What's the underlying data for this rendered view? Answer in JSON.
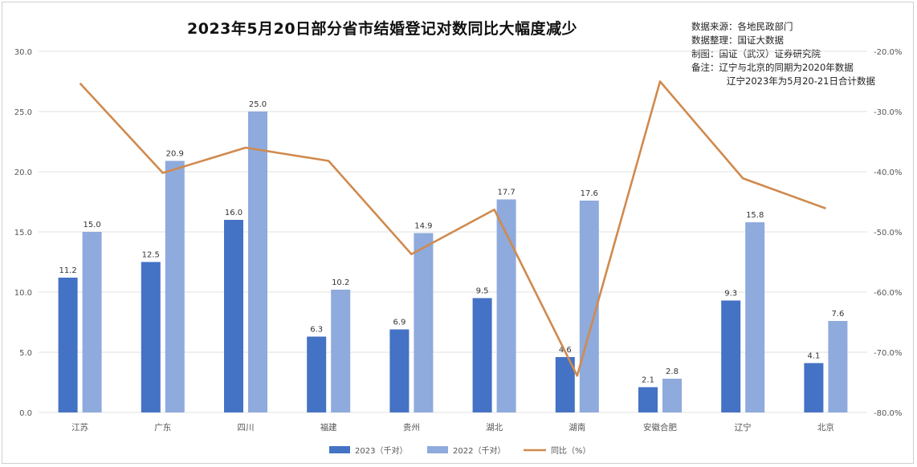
{
  "notes": {
    "source": "数据来源：各地民政部门",
    "compiled": "数据整理：国证大数据",
    "made_by": "制图：国证（武汉）证券研究院",
    "remark1": "备注：辽宁与北京的同期为2020年数据",
    "remark2": "辽宁2023年为5月20-21日合计数据"
  },
  "colors": {
    "series_2023": "#4472c4",
    "series_2022": "#8faadc",
    "yoy": "#d08a4e",
    "grid": "#e2e2e2"
  },
  "chart_data": {
    "type": "bar",
    "title": "2023年5月20日部分省市结婚登记对数同比大幅度减少",
    "categories": [
      "江苏",
      "广东",
      "四川",
      "福建",
      "贵州",
      "湖北",
      "湖南",
      "安徽合肥",
      "辽宁",
      "北京"
    ],
    "series": [
      {
        "name": "2023（千对）",
        "type": "bar",
        "axis": "left",
        "values": [
          11.2,
          12.5,
          16.0,
          6.3,
          6.9,
          9.5,
          4.6,
          2.1,
          9.3,
          4.1
        ],
        "labels": [
          "11.2",
          "12.5",
          "16.0",
          "6.3",
          "6.9",
          "9.5",
          "4.6",
          "2.1",
          "9.3",
          "4.1"
        ]
      },
      {
        "name": "2022（千对）",
        "type": "bar",
        "axis": "left",
        "values": [
          15.0,
          20.9,
          25.0,
          10.2,
          14.9,
          17.7,
          17.6,
          2.8,
          15.8,
          7.6
        ],
        "labels": [
          "15.0",
          "20.9",
          "25.0",
          "10.2",
          "14.9",
          "17.7",
          "17.6",
          "2.8",
          "15.8",
          "7.6"
        ]
      },
      {
        "name": "同比（%）",
        "type": "line",
        "axis": "right",
        "values": [
          -25.3,
          -40.2,
          -36.0,
          -38.2,
          -53.7,
          -46.3,
          -73.9,
          -25.0,
          -41.1,
          -46.1
        ]
      }
    ],
    "left_axis": {
      "min": 0,
      "max": 30,
      "ticks": [
        "0.0",
        "5.0",
        "10.0",
        "15.0",
        "20.0",
        "25.0",
        "30.0"
      ]
    },
    "right_axis": {
      "min": -80,
      "max": -20,
      "ticks": [
        "-80.0%",
        "-70.0%",
        "-60.0%",
        "-50.0%",
        "-40.0%",
        "-30.0%",
        "-20.0%"
      ]
    },
    "grid": true,
    "legend": "bottom"
  }
}
